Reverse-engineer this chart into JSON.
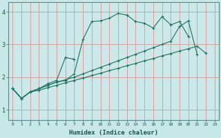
{
  "xlabel": "Humidex (Indice chaleur)",
  "bg_color": "#c8e8e8",
  "plot_bg_color": "#cce8e8",
  "line_color": "#1a7060",
  "grid_color": "#d4a0a0",
  "xlim": [
    -0.5,
    23.5
  ],
  "ylim": [
    0.7,
    4.3
  ],
  "yticks": [
    1,
    2,
    3,
    4
  ],
  "xticks": [
    0,
    1,
    2,
    3,
    4,
    5,
    6,
    7,
    8,
    9,
    10,
    11,
    12,
    13,
    14,
    15,
    16,
    17,
    18,
    19,
    20,
    21,
    22,
    23
  ],
  "series": [
    [
      1.65,
      1.35,
      1.55,
      1.65,
      1.75,
      1.85,
      1.9,
      2.1,
      3.15,
      3.7,
      3.72,
      3.8,
      3.95,
      3.9,
      3.7,
      3.65,
      3.5,
      3.85,
      3.6,
      3.7,
      3.25,
      null,
      null,
      null
    ],
    [
      1.65,
      1.35,
      1.55,
      1.65,
      1.8,
      1.9,
      2.6,
      2.55,
      null,
      null,
      null,
      null,
      null,
      null,
      null,
      null,
      null,
      null,
      null,
      null,
      null,
      null,
      null,
      null
    ],
    [
      1.65,
      1.35,
      1.55,
      1.65,
      1.75,
      1.85,
      1.92,
      2.0,
      2.1,
      2.2,
      2.3,
      2.4,
      2.5,
      2.6,
      2.7,
      2.8,
      2.9,
      3.0,
      3.1,
      3.55,
      3.72,
      2.7,
      null,
      null
    ],
    [
      1.65,
      1.35,
      1.55,
      1.6,
      1.68,
      1.75,
      1.83,
      1.9,
      1.97,
      2.05,
      2.12,
      2.2,
      2.27,
      2.35,
      2.42,
      2.5,
      2.57,
      2.65,
      2.72,
      2.8,
      2.87,
      2.95,
      2.73,
      null
    ]
  ]
}
